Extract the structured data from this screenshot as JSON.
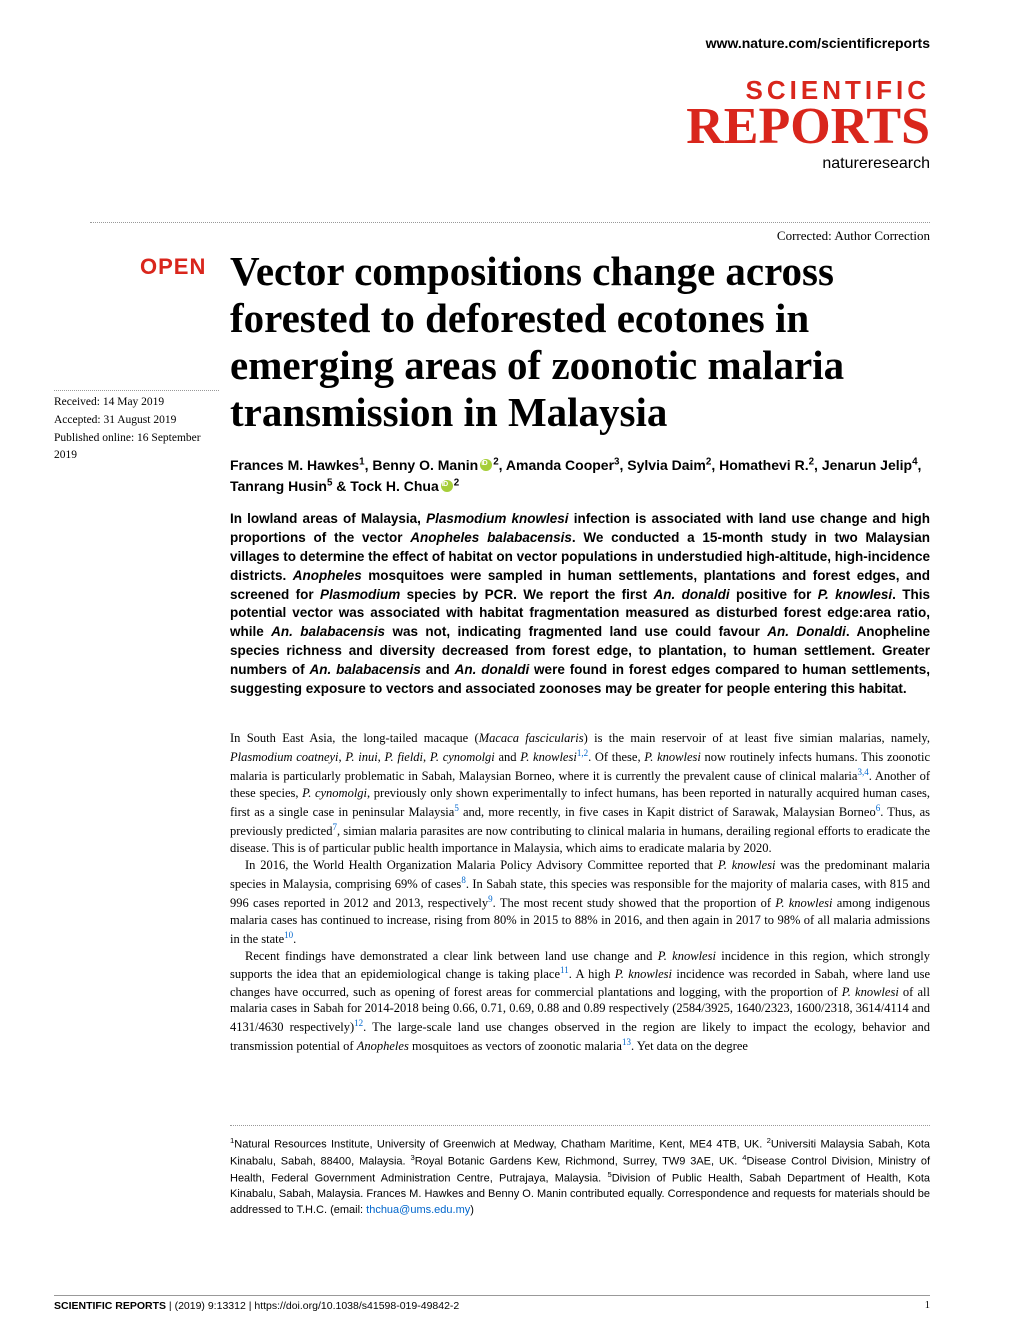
{
  "header": {
    "site_url": "www.nature.com/scientificreports",
    "journal_word1": "SCIENTIFIC",
    "journal_word2": "REPORTS",
    "publisher": "natureresearch",
    "correction": "Corrected: Author Correction"
  },
  "open_badge": "OPEN",
  "title": "Vector compositions change across forested to deforested ecotones in emerging areas of zoonotic malaria transmission in Malaysia",
  "dates": {
    "received": "Received: 14 May 2019",
    "accepted": "Accepted: 31 August 2019",
    "published": "Published online: 16 September 2019"
  },
  "authors_html": "Frances M. Hawkes<span class='sup'>1</span>, Benny O. Manin<span class='orcid'></span><span class='sup'>2</span>, Amanda Cooper<span class='sup'>3</span>, Sylvia Daim<span class='sup'>2</span>, Homathevi R.<span class='sup'>2</span>, Jenarun Jelip<span class='sup'>4</span>, Tanrang Husin<span class='sup'>5</span> & Tock H. Chua<span class='orcid'></span><span class='sup'>2</span>",
  "abstract": "In lowland areas of Malaysia, <span class='italic'>Plasmodium knowlesi</span> infection is associated with land use change and high proportions of the vector <span class='italic'>Anopheles balabacensis</span>. We conducted a 15-month study in two Malaysian villages to determine the effect of habitat on vector populations in understudied high-altitude, high-incidence districts. <span class='italic'>Anopheles</span> mosquitoes were sampled in human settlements, plantations and forest edges, and screened for <span class='italic'>Plasmodium</span> species by PCR. We report the first <span class='italic'>An. donaldi</span> positive for <span class='italic'>P. knowlesi</span>. This potential vector was associated with habitat fragmentation measured as disturbed forest edge:area ratio, while <span class='italic'>An. balabacensis</span> was not, indicating fragmented land use could favour <span class='italic'>An. Donaldi</span>. Anopheline species richness and diversity decreased from forest edge, to plantation, to human settlement. Greater numbers of <span class='italic'>An. balabacensis</span> and <span class='italic'>An. donaldi</span> were found in forest edges compared to human settlements, suggesting exposure to vectors and associated zoonoses may be greater for people entering this habitat.",
  "body_paragraphs": [
    "In South East Asia, the long-tailed macaque (<span class='italic'>Macaca fascicularis</span>) is the main reservoir of at least five simian malarias, namely, <span class='italic'>Plasmodium coatneyi</span>, <span class='italic'>P. inui</span>, <span class='italic'>P. fieldi</span>, <span class='italic'>P. cynomolgi</span> and <span class='italic'>P. knowlesi</span><span class='ref'>1,2</span>. Of these, <span class='italic'>P. knowlesi</span> now routinely infects humans. This zoonotic malaria is particularly problematic in Sabah, Malaysian Borneo, where it is currently the prevalent cause of clinical malaria<span class='ref'>3,4</span>. Another of these species, <span class='italic'>P. cynomolgi</span>, previously only shown experimentally to infect humans, has been reported in naturally acquired human cases, first as a single case in peninsular Malaysia<span class='ref'>5</span> and, more recently, in five cases in Kapit district of Sarawak, Malaysian Borneo<span class='ref'>6</span>. Thus, as previously predicted<span class='ref'>7</span>, simian malaria parasites are now contributing to clinical malaria in humans, derailing regional efforts to eradicate the disease. This is of particular public health importance in Malaysia, which aims to eradicate malaria by 2020.",
    "In 2016, the World Health Organization Malaria Policy Advisory Committee reported that <span class='italic'>P. knowlesi</span> was the predominant malaria species in Malaysia, comprising 69% of cases<span class='ref'>8</span>. In Sabah state, this species was responsible for the majority of malaria cases, with 815 and 996 cases reported in 2012 and 2013, respectively<span class='ref'>9</span>. The most recent study showed that the proportion of <span class='italic'>P. knowlesi</span> among indigenous malaria cases has continued to increase, rising from 80% in 2015 to 88% in 2016, and then again in 2017 to 98% of all malaria admissions in the state<span class='ref'>10</span>.",
    "Recent findings have demonstrated a clear link between land use change and <span class='italic'>P. knowlesi</span> incidence in this region, which strongly supports the idea that an epidemiological change is taking place<span class='ref'>11</span>. A high <span class='italic'>P. knowlesi</span> incidence was recorded in Sabah, where land use changes have occurred, such as opening of forest areas for commercial plantations and logging, with the proportion of <span class='italic'>P. knowlesi</span> of all malaria cases in Sabah for 2014-2018 being 0.66, 0.71, 0.69, 0.88 and 0.89 respectively (2584/3925, 1640/2323, 1600/2318, 3614/4114 and 4131/4630 respectively)<span class='ref'>12</span>. The large-scale land use changes observed in the region are likely to impact the ecology, behavior and transmission potential of <span class='italic'>Anopheles</span> mosquitoes as vectors of zoonotic malaria<span class='ref'>13</span>. Yet data on the degree"
  ],
  "affiliations": "<span class='sup'>1</span>Natural Resources Institute, University of Greenwich at Medway, Chatham Maritime, Kent, ME4 4TB, UK. <span class='sup'>2</span>Universiti Malaysia Sabah, Kota Kinabalu, Sabah, 88400, Malaysia. <span class='sup'>3</span>Royal Botanic Gardens Kew, Richmond, Surrey, TW9 3AE, UK. <span class='sup'>4</span>Disease Control Division, Ministry of Health, Federal Government Administration Centre, Putrajaya, Malaysia. <span class='sup'>5</span>Division of Public Health, Sabah Department of Health, Kota Kinabalu, Sabah, Malaysia. Frances M. Hawkes and Benny O. Manin contributed equally. Correspondence and requests for materials should be addressed to T.H.C. (email: <span class='email-link'>thchua@ums.edu.my</span>)",
  "footer": {
    "journal": "SCIENTIFIC REPORTS",
    "citation": " | (2019) 9:13312 | https://doi.org/10.1038/s41598-019-49842-2",
    "page": "1"
  },
  "colors": {
    "link_blue": "#0066cc",
    "brand_red": "#d9261c",
    "orcid_green": "#a6ce39"
  }
}
